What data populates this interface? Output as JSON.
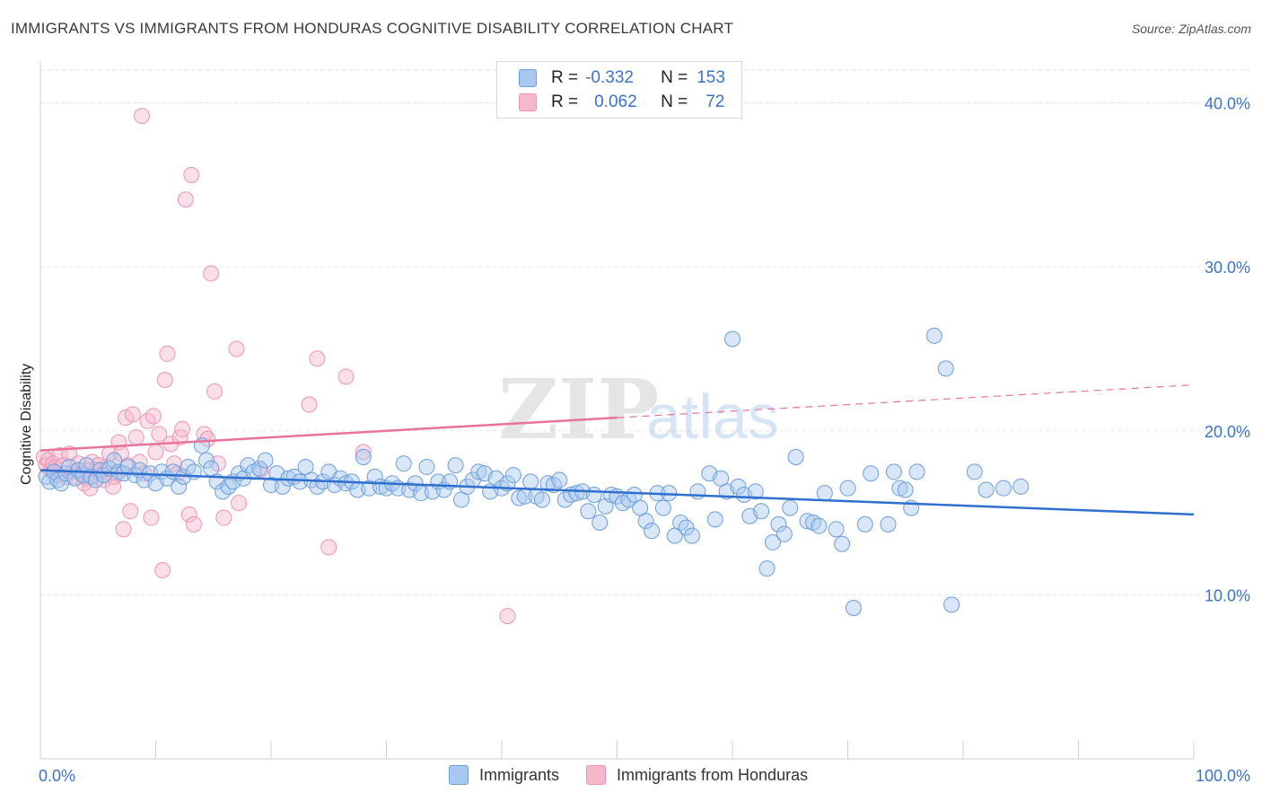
{
  "title": "IMMIGRANTS VS IMMIGRANTS FROM HONDURAS COGNITIVE DISABILITY CORRELATION CHART",
  "source": "Source: ZipAtlas.com",
  "watermark": {
    "zip": "ZIP",
    "atlas": "atlas"
  },
  "legend": {
    "series1": {
      "r_label": "R =",
      "r_value": "-0.332",
      "n_label": "N =",
      "n_value": "153"
    },
    "series2": {
      "r_label": "R =",
      "r_value": "0.062",
      "n_label": "N =",
      "n_value": "72"
    }
  },
  "bottom_legend": {
    "series1": "Immigrants",
    "series2": "Immigrants from Honduras"
  },
  "colors": {
    "blue_fill": "#a9c8f0",
    "blue_stroke": "#6a9fe0",
    "blue_line": "#2f6fcf",
    "pink_fill": "#f6b8cb",
    "pink_stroke": "#ee94b2",
    "pink_line": "#e8739a",
    "axis_text": "#3b74c6",
    "grid": "#e3e3e3"
  },
  "chart_data": {
    "type": "scatter",
    "title": "IMMIGRANTS VS IMMIGRANTS FROM HONDURAS COGNITIVE DISABILITY CORRELATION CHART",
    "xlabel": "",
    "ylabel": "Cognitive Disability",
    "xlim": [
      0,
      100
    ],
    "ylim": [
      0,
      42
    ],
    "x_tick_labels": [
      "0.0%",
      "100.0%"
    ],
    "y_ticks": [
      10,
      20,
      30,
      40
    ],
    "y_tick_labels": [
      "10.0%",
      "20.0%",
      "30.0%",
      "40.0%"
    ],
    "grid": true,
    "legend_position": "top-center",
    "series": [
      {
        "name": "Immigrants",
        "color": "#6a9fe0",
        "trend": {
          "x": [
            0,
            100
          ],
          "y": [
            17.6,
            14.9
          ]
        },
        "points": [
          [
            0.5,
            17.2
          ],
          [
            0.8,
            16.9
          ],
          [
            1.2,
            17.5
          ],
          [
            1.5,
            17.0
          ],
          [
            1.8,
            16.8
          ],
          [
            2.2,
            17.4
          ],
          [
            2.5,
            17.8
          ],
          [
            3.0,
            17.1
          ],
          [
            3.3,
            17.6
          ],
          [
            3.7,
            17.3
          ],
          [
            4.0,
            17.9
          ],
          [
            4.4,
            17.2
          ],
          [
            4.8,
            17.0
          ],
          [
            5.2,
            17.6
          ],
          [
            5.5,
            17.3
          ],
          [
            6.0,
            17.7
          ],
          [
            6.4,
            18.2
          ],
          [
            6.8,
            17.5
          ],
          [
            7.2,
            17.4
          ],
          [
            7.6,
            17.8
          ],
          [
            8.2,
            17.3
          ],
          [
            8.6,
            17.6
          ],
          [
            9.0,
            17.0
          ],
          [
            9.5,
            17.4
          ],
          [
            10.0,
            16.8
          ],
          [
            10.5,
            17.5
          ],
          [
            11.0,
            17.1
          ],
          [
            11.5,
            17.5
          ],
          [
            12.0,
            16.6
          ],
          [
            12.4,
            17.2
          ],
          [
            12.8,
            17.8
          ],
          [
            13.3,
            17.5
          ],
          [
            14.0,
            19.1
          ],
          [
            14.4,
            18.2
          ],
          [
            14.8,
            17.7
          ],
          [
            15.3,
            16.9
          ],
          [
            15.8,
            16.3
          ],
          [
            16.3,
            16.6
          ],
          [
            16.7,
            16.9
          ],
          [
            17.2,
            17.4
          ],
          [
            17.6,
            17.1
          ],
          [
            18.0,
            17.9
          ],
          [
            18.5,
            17.5
          ],
          [
            19.0,
            17.7
          ],
          [
            19.5,
            18.2
          ],
          [
            20.0,
            16.7
          ],
          [
            20.5,
            17.4
          ],
          [
            21.0,
            16.6
          ],
          [
            21.5,
            17.1
          ],
          [
            22.0,
            17.2
          ],
          [
            22.5,
            16.9
          ],
          [
            23.0,
            17.8
          ],
          [
            23.5,
            17.0
          ],
          [
            24.0,
            16.6
          ],
          [
            24.5,
            16.9
          ],
          [
            25.0,
            17.5
          ],
          [
            25.5,
            16.7
          ],
          [
            26.0,
            17.1
          ],
          [
            26.5,
            16.8
          ],
          [
            27.0,
            16.9
          ],
          [
            27.5,
            16.4
          ],
          [
            28.0,
            18.4
          ],
          [
            28.5,
            16.5
          ],
          [
            29.0,
            17.2
          ],
          [
            29.5,
            16.6
          ],
          [
            30.0,
            16.5
          ],
          [
            30.5,
            16.8
          ],
          [
            31.0,
            16.5
          ],
          [
            31.5,
            18.0
          ],
          [
            32.0,
            16.4
          ],
          [
            32.5,
            16.8
          ],
          [
            33.0,
            16.2
          ],
          [
            33.5,
            17.8
          ],
          [
            34.0,
            16.3
          ],
          [
            34.5,
            16.9
          ],
          [
            35.0,
            16.4
          ],
          [
            35.5,
            16.9
          ],
          [
            36.0,
            17.9
          ],
          [
            36.5,
            15.8
          ],
          [
            37.0,
            16.6
          ],
          [
            37.5,
            17.0
          ],
          [
            38.0,
            17.5
          ],
          [
            38.5,
            17.4
          ],
          [
            39.0,
            16.3
          ],
          [
            39.5,
            17.1
          ],
          [
            40.0,
            16.5
          ],
          [
            40.5,
            16.8
          ],
          [
            41.0,
            17.3
          ],
          [
            41.5,
            15.9
          ],
          [
            42.0,
            16.0
          ],
          [
            42.5,
            16.9
          ],
          [
            43.0,
            16.0
          ],
          [
            43.5,
            15.8
          ],
          [
            44.0,
            16.8
          ],
          [
            44.5,
            16.7
          ],
          [
            45.0,
            17.0
          ],
          [
            45.5,
            15.8
          ],
          [
            46.0,
            16.1
          ],
          [
            46.5,
            16.2
          ],
          [
            47.0,
            16.3
          ],
          [
            47.5,
            15.1
          ],
          [
            48.0,
            16.1
          ],
          [
            48.5,
            14.4
          ],
          [
            49.0,
            15.4
          ],
          [
            49.5,
            16.1
          ],
          [
            50.0,
            16.0
          ],
          [
            50.5,
            15.6
          ],
          [
            51.0,
            15.8
          ],
          [
            51.5,
            16.1
          ],
          [
            52.0,
            15.3
          ],
          [
            52.5,
            14.5
          ],
          [
            53.0,
            13.9
          ],
          [
            53.5,
            16.2
          ],
          [
            54.0,
            15.3
          ],
          [
            54.5,
            16.2
          ],
          [
            55.0,
            13.6
          ],
          [
            55.5,
            14.4
          ],
          [
            56.0,
            14.1
          ],
          [
            56.5,
            13.6
          ],
          [
            57.0,
            16.3
          ],
          [
            58.0,
            17.4
          ],
          [
            58.5,
            14.6
          ],
          [
            59.0,
            17.1
          ],
          [
            59.5,
            16.3
          ],
          [
            60.0,
            25.6
          ],
          [
            60.5,
            16.6
          ],
          [
            61.0,
            16.1
          ],
          [
            61.5,
            14.8
          ],
          [
            62.0,
            16.3
          ],
          [
            62.5,
            15.1
          ],
          [
            63.0,
            11.6
          ],
          [
            63.5,
            13.2
          ],
          [
            64.0,
            14.3
          ],
          [
            64.5,
            13.7
          ],
          [
            65.0,
            15.3
          ],
          [
            65.5,
            18.4
          ],
          [
            66.5,
            14.5
          ],
          [
            67.0,
            14.4
          ],
          [
            67.5,
            14.2
          ],
          [
            68.0,
            16.2
          ],
          [
            69.0,
            14.0
          ],
          [
            69.5,
            13.1
          ],
          [
            70.0,
            16.5
          ],
          [
            70.5,
            9.2
          ],
          [
            71.5,
            14.3
          ],
          [
            72.0,
            17.4
          ],
          [
            73.5,
            14.3
          ],
          [
            74.0,
            17.5
          ],
          [
            74.5,
            16.5
          ],
          [
            75.0,
            16.4
          ],
          [
            75.5,
            15.3
          ],
          [
            76.0,
            17.5
          ],
          [
            77.5,
            25.8
          ],
          [
            78.5,
            23.8
          ],
          [
            79.0,
            9.4
          ],
          [
            81.0,
            17.5
          ],
          [
            82.0,
            16.4
          ],
          [
            83.5,
            16.5
          ],
          [
            85.0,
            16.6
          ]
        ]
      },
      {
        "name": "Immigrants from Honduras",
        "color": "#ee94b2",
        "trend": {
          "x": [
            0,
            50
          ],
          "y": [
            18.8,
            20.8
          ]
        },
        "trend_dashed": {
          "x": [
            50,
            100
          ],
          "y": [
            20.8,
            22.8
          ]
        },
        "points": [
          [
            0.3,
            18.4
          ],
          [
            0.5,
            17.9
          ],
          [
            0.7,
            18.2
          ],
          [
            0.9,
            17.6
          ],
          [
            1.1,
            18.0
          ],
          [
            1.3,
            17.8
          ],
          [
            1.5,
            17.3
          ],
          [
            1.7,
            18.5
          ],
          [
            2.0,
            17.9
          ],
          [
            2.2,
            17.2
          ],
          [
            2.5,
            18.6
          ],
          [
            2.8,
            17.5
          ],
          [
            3.0,
            17.2
          ],
          [
            3.3,
            18.0
          ],
          [
            3.6,
            17.4
          ],
          [
            3.8,
            16.8
          ],
          [
            4.0,
            17.1
          ],
          [
            4.3,
            16.5
          ],
          [
            4.5,
            18.1
          ],
          [
            4.8,
            17.6
          ],
          [
            5.0,
            17.9
          ],
          [
            5.3,
            17.3
          ],
          [
            5.5,
            17.0
          ],
          [
            5.8,
            17.8
          ],
          [
            6.0,
            18.6
          ],
          [
            6.3,
            16.6
          ],
          [
            6.6,
            17.4
          ],
          [
            6.8,
            19.3
          ],
          [
            7.0,
            18.6
          ],
          [
            7.2,
            14.0
          ],
          [
            7.4,
            20.8
          ],
          [
            7.6,
            17.9
          ],
          [
            7.8,
            15.1
          ],
          [
            8.0,
            21.0
          ],
          [
            8.3,
            19.6
          ],
          [
            8.6,
            18.1
          ],
          [
            8.8,
            39.2
          ],
          [
            9.0,
            17.4
          ],
          [
            9.3,
            20.6
          ],
          [
            9.6,
            14.7
          ],
          [
            9.8,
            20.9
          ],
          [
            10.0,
            18.7
          ],
          [
            10.3,
            19.8
          ],
          [
            10.6,
            11.5
          ],
          [
            10.8,
            23.1
          ],
          [
            11.0,
            24.7
          ],
          [
            11.3,
            19.2
          ],
          [
            11.6,
            18.0
          ],
          [
            11.9,
            17.4
          ],
          [
            12.1,
            19.6
          ],
          [
            12.3,
            20.1
          ],
          [
            12.6,
            34.1
          ],
          [
            12.9,
            14.9
          ],
          [
            13.1,
            35.6
          ],
          [
            13.3,
            14.3
          ],
          [
            14.2,
            19.8
          ],
          [
            14.5,
            19.5
          ],
          [
            14.8,
            29.6
          ],
          [
            15.1,
            22.4
          ],
          [
            15.4,
            18.0
          ],
          [
            15.9,
            14.7
          ],
          [
            17.0,
            25.0
          ],
          [
            17.2,
            15.6
          ],
          [
            19.1,
            17.6
          ],
          [
            23.3,
            21.6
          ],
          [
            24.0,
            24.4
          ],
          [
            25.0,
            12.9
          ],
          [
            26.5,
            23.3
          ],
          [
            28.0,
            18.7
          ],
          [
            40.5,
            8.7
          ],
          [
            4.0,
            17.6
          ],
          [
            6.4,
            17.2
          ]
        ]
      }
    ]
  }
}
